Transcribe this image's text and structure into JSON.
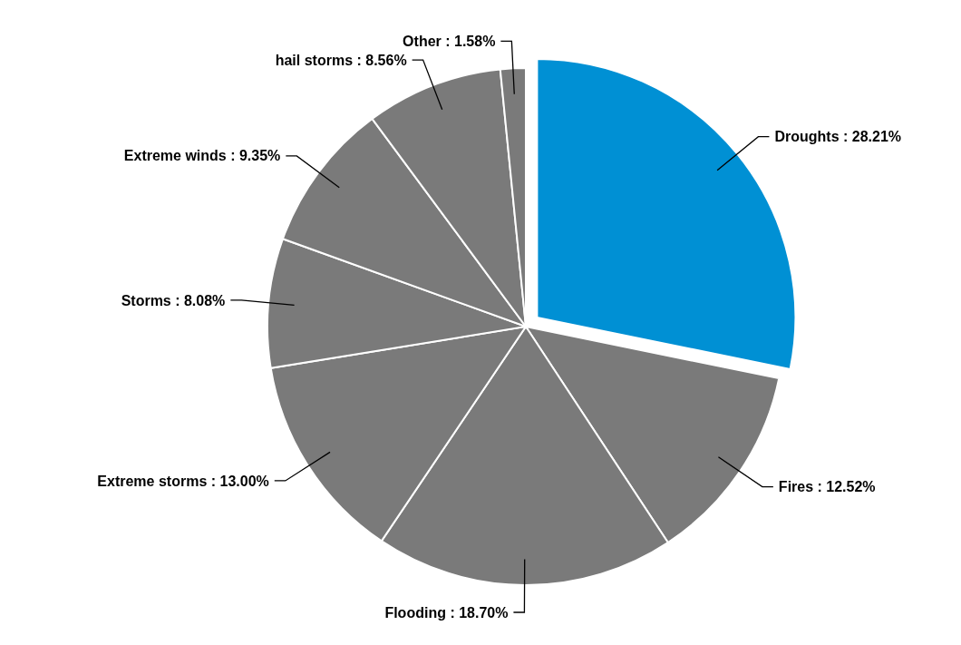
{
  "chart_data": {
    "type": "pie",
    "categories": [
      "Droughts",
      "Fires",
      "Flooding",
      "Extreme storms",
      "Storms",
      "Extreme winds",
      "hail storms",
      "Other"
    ],
    "values": [
      28.21,
      12.52,
      18.7,
      13.0,
      8.08,
      9.35,
      8.56,
      1.58
    ],
    "colors": [
      "#0090d4",
      "#7a7a7a",
      "#7a7a7a",
      "#7a7a7a",
      "#7a7a7a",
      "#7a7a7a",
      "#7a7a7a",
      "#7a7a7a"
    ],
    "value_labels": [
      ": 28.21%",
      ": 12.52%",
      ": 18.70%",
      ": 13.00%",
      ": 8.08%",
      ": 9.35%",
      ": 8.56%",
      ": 1.58%"
    ]
  }
}
